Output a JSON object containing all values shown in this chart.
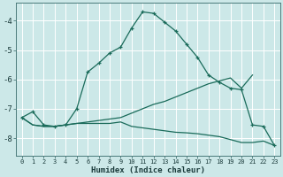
{
  "xlabel": "Humidex (Indice chaleur)",
  "background_color": "#cce8e8",
  "line_color": "#1a6b5a",
  "xlim": [
    -0.5,
    23.5
  ],
  "ylim": [
    -8.6,
    -3.4
  ],
  "yticks": [
    -8,
    -7,
    -6,
    -5,
    -4
  ],
  "xticks": [
    0,
    1,
    2,
    3,
    4,
    5,
    6,
    7,
    8,
    9,
    10,
    11,
    12,
    13,
    14,
    15,
    16,
    17,
    18,
    19,
    20,
    21,
    22,
    23
  ],
  "curve1_x": [
    0,
    1,
    2,
    3,
    4,
    5,
    6,
    7,
    8,
    9,
    10,
    11,
    12,
    13,
    14,
    15,
    16,
    17,
    18,
    19,
    20,
    21,
    22,
    23
  ],
  "curve1_y": [
    -7.3,
    -7.1,
    -7.55,
    -7.6,
    -7.55,
    -7.0,
    -5.75,
    -5.45,
    -5.1,
    -4.9,
    -4.25,
    -3.7,
    -3.75,
    -4.05,
    -4.35,
    -4.8,
    -5.25,
    -5.85,
    -6.1,
    -6.3,
    -6.35,
    -7.55,
    -7.6,
    -8.25
  ],
  "curve2_x": [
    0,
    1,
    2,
    3,
    4,
    5,
    6,
    7,
    8,
    9,
    10,
    11,
    12,
    13,
    14,
    15,
    16,
    17,
    18,
    19,
    20,
    21
  ],
  "curve2_y": [
    -7.3,
    -7.55,
    -7.6,
    -7.6,
    -7.55,
    -7.5,
    -7.45,
    -7.4,
    -7.35,
    -7.3,
    -7.15,
    -7.0,
    -6.85,
    -6.75,
    -6.6,
    -6.45,
    -6.3,
    -6.15,
    -6.05,
    -5.95,
    -6.3,
    -5.85
  ],
  "curve3_x": [
    0,
    1,
    2,
    3,
    4,
    5,
    6,
    7,
    8,
    9,
    10,
    11,
    12,
    13,
    14,
    15,
    16,
    17,
    18,
    19,
    20,
    21,
    22,
    23
  ],
  "curve3_y": [
    -7.3,
    -7.55,
    -7.6,
    -7.6,
    -7.55,
    -7.5,
    -7.5,
    -7.5,
    -7.5,
    -7.45,
    -7.6,
    -7.65,
    -7.7,
    -7.75,
    -7.8,
    -7.82,
    -7.85,
    -7.9,
    -7.95,
    -8.05,
    -8.15,
    -8.15,
    -8.1,
    -8.25
  ]
}
